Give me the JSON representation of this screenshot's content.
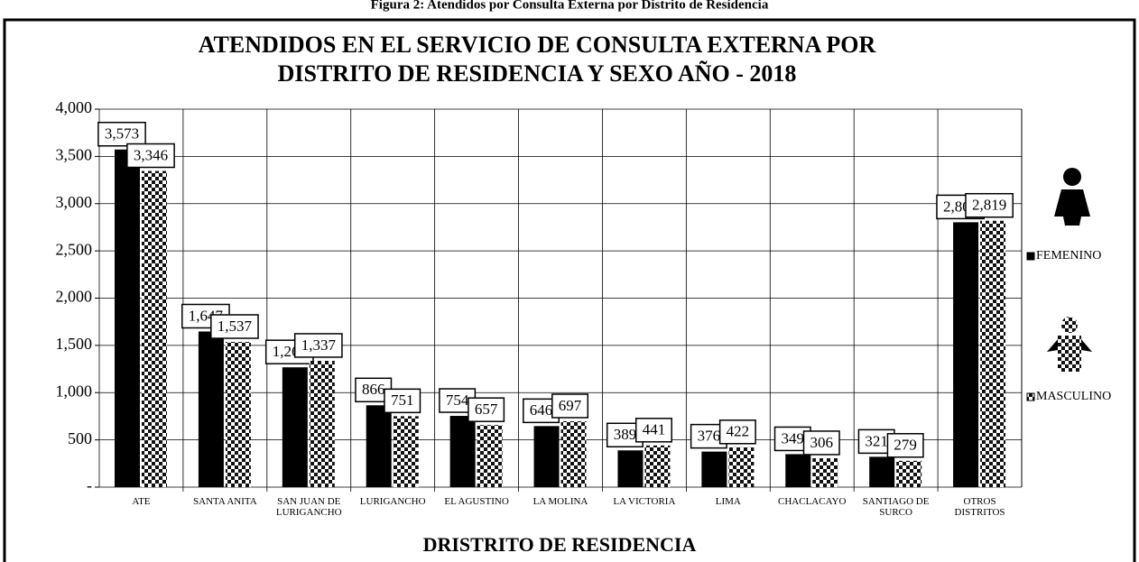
{
  "chart_data": {
    "type": "bar",
    "caption": "Figura 2: Atendidos por Consulta Externa por Distrito de Residencia",
    "title": "ATENDIDOS EN EL SERVICIO DE CONSULTA EXTERNA POR DISTRITO DE RESIDENCIA Y SEXO AÑO - 2018",
    "x_label": "DRISTRITO DE RESIDENCIA",
    "categories": [
      "ATE",
      "SANTA ANITA",
      "SAN JUAN DE LURIGANCHO",
      "LURIGANCHO",
      "EL AGUSTINO",
      "LA MOLINA",
      "LA VICTORIA",
      "LIMA",
      "CHACLACAYO",
      "SANTIAGO DE SURCO",
      "OTROS DISTRITOS"
    ],
    "series": [
      {
        "name": "FEMENINO",
        "color": "#000000",
        "values": [
          3573,
          1647,
          1268,
          866,
          754,
          646,
          389,
          376,
          349,
          321,
          2803
        ],
        "value_labels": [
          "3,573",
          "1,647",
          "1,268",
          "866",
          "754",
          "646",
          "389",
          "376",
          "349",
          "321",
          "2,803"
        ]
      },
      {
        "name": "MASCULINO",
        "color": "#111111",
        "pattern": "checker",
        "values": [
          3346,
          1537,
          1337,
          751,
          657,
          697,
          441,
          422,
          306,
          279,
          2819
        ],
        "value_labels": [
          "3,346",
          "1,537",
          "1,337",
          "751",
          "657",
          "697",
          "441",
          "422",
          "306",
          "279",
          "2,819"
        ]
      }
    ],
    "ylim": [
      0,
      4000
    ],
    "yticks": [
      {
        "value": 0,
        "label": "-"
      },
      500,
      {
        "value": 1000,
        "label": "1,000"
      },
      {
        "value": 1500,
        "label": "1,500"
      },
      {
        "value": 2000,
        "label": "2,000"
      },
      {
        "value": 2500,
        "label": "2,500"
      },
      {
        "value": 3000,
        "label": "3,000"
      },
      {
        "value": 3500,
        "label": "3,500"
      },
      {
        "value": 4000,
        "label": "4,000"
      }
    ],
    "grid": true
  }
}
